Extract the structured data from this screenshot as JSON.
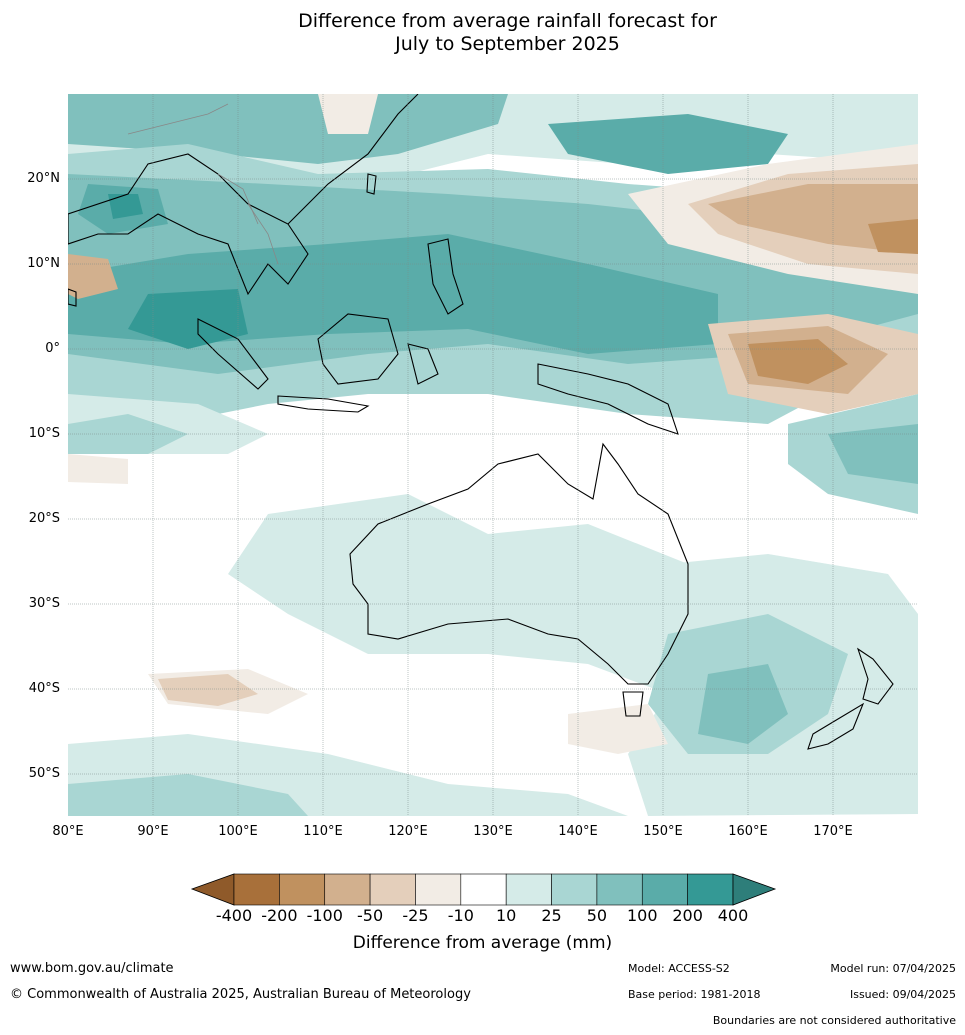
{
  "title_line1": "Difference from average rainfall forecast for",
  "title_line2": "July to September 2025",
  "map": {
    "lat_labels": [
      "20°N",
      "10°N",
      "0°",
      "10°S",
      "20°S",
      "30°S",
      "40°S",
      "50°S"
    ],
    "lon_labels": [
      "80°E",
      "90°E",
      "100°E",
      "110°E",
      "120°E",
      "130°E",
      "140°E",
      "150°E",
      "160°E",
      "170°E"
    ],
    "extent": {
      "lon_min": 80,
      "lon_max": 180,
      "lat_min": -55,
      "lat_max": 30
    }
  },
  "colorbar": {
    "ticks": [
      "-400",
      "-200",
      "-100",
      "-50",
      "-25",
      "-10",
      "10",
      "25",
      "50",
      "100",
      "200",
      "400"
    ],
    "colors": [
      "#a8703a",
      "#c0915f",
      "#d2b08e",
      "#e4cfbb",
      "#f2ece5",
      "#ffffff",
      "#d5ebe8",
      "#a9d6d3",
      "#80c0bd",
      "#5aaca9",
      "#349995"
    ],
    "over_color": "#2e7e7a",
    "under_color": "#8f5a2a",
    "title": "Difference from average (mm)"
  },
  "footer": {
    "url": "www.bom.gov.au/climate",
    "copyright": "© Commonwealth of Australia 2025, Australian Bureau of Meteorology",
    "model": "Model: ACCESS-S2",
    "base_period": "Base period: 1981-2018",
    "model_run": "Model run: 07/04/2025",
    "issued": "Issued: 09/04/2025",
    "disclaimer": "Boundaries are not considered authoritative"
  }
}
